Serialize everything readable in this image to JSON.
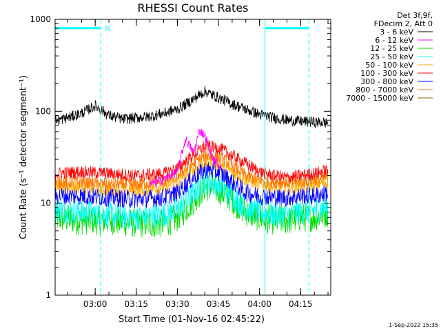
{
  "chart_data": {
    "type": "line",
    "title": "RHESSI Count Rates",
    "xlabel": "Start Time (01-Nov-16 02:45:22)",
    "ylabel": "Count Rate (s⁻¹ detector segment⁻¹)",
    "yscale": "log",
    "ylim": [
      1,
      1000
    ],
    "xlim": [
      "02:45:22",
      "04:26:00"
    ],
    "x_ticks": [
      "03:00",
      "03:15",
      "03:30",
      "03:45",
      "04:00",
      "04:15"
    ],
    "y_ticks": [
      "1",
      "10",
      "100",
      "1000"
    ],
    "legend_header": [
      "Det 3f,9f,",
      "FDecim 2, Att 0"
    ],
    "legend_position": "top-right, outside plot",
    "series": [
      {
        "name": "3 - 6 keV",
        "color": "#000000",
        "x": [
          "02:45",
          "02:50",
          "02:55",
          "03:00",
          "03:05",
          "03:10",
          "03:15",
          "03:20",
          "03:25",
          "03:30",
          "03:35",
          "03:40",
          "03:45",
          "03:50",
          "03:55",
          "04:00",
          "04:05",
          "04:10",
          "04:15",
          "04:20",
          "04:25"
        ],
        "y": [
          78,
          85,
          95,
          115,
          90,
          82,
          85,
          88,
          95,
          105,
          130,
          165,
          140,
          120,
          105,
          92,
          85,
          80,
          78,
          76,
          75
        ]
      },
      {
        "name": "6 - 12 keV",
        "color": "#ff00ff",
        "x": [
          "03:20",
          "03:25",
          "03:30",
          "03:33",
          "03:36",
          "03:38",
          "03:40",
          "03:43",
          "03:46"
        ],
        "y": [
          16,
          18,
          22,
          50,
          35,
          62,
          55,
          30,
          25
        ]
      },
      {
        "name": "12 - 25 keV",
        "color": "#00dd00",
        "x": [
          "02:45",
          "02:55",
          "03:05",
          "03:15",
          "03:25",
          "03:30",
          "03:35",
          "03:40",
          "03:45",
          "03:50",
          "03:55",
          "04:00",
          "04:05",
          "04:10",
          "04:15",
          "04:20",
          "04:25"
        ],
        "y": [
          7,
          6.5,
          6.5,
          6,
          6,
          7,
          10,
          15,
          14,
          11,
          8,
          7,
          6.5,
          6.5,
          7,
          7,
          8
        ]
      },
      {
        "name": "25 - 50 keV",
        "color": "#00ffff",
        "x": [
          "02:45",
          "02:55",
          "03:05",
          "03:15",
          "03:25",
          "03:30",
          "03:35",
          "03:40",
          "03:45",
          "03:50",
          "03:55",
          "04:00",
          "04:05",
          "04:10",
          "04:15",
          "04:20",
          "04:25"
        ],
        "y": [
          8.5,
          8,
          7.5,
          7,
          7.5,
          8.5,
          12,
          17,
          16,
          12,
          9,
          8,
          7.5,
          7.5,
          8,
          8.5,
          9
        ]
      },
      {
        "name": "50 - 100 keV",
        "color": "#ffaa00",
        "x": [
          "02:45",
          "02:55",
          "03:05",
          "03:15",
          "03:25",
          "03:30",
          "03:35",
          "03:40",
          "03:45",
          "03:50",
          "03:55",
          "04:00",
          "04:05",
          "04:10",
          "04:15",
          "04:20",
          "04:25"
        ],
        "y": [
          15,
          15,
          14,
          14,
          15,
          17,
          22,
          28,
          27,
          22,
          18,
          16,
          15,
          15,
          15,
          16,
          17
        ]
      },
      {
        "name": "100 - 300 keV",
        "color": "#ff0000",
        "x": [
          "02:45",
          "02:55",
          "03:05",
          "03:15",
          "03:25",
          "03:30",
          "03:35",
          "03:40",
          "03:45",
          "03:50",
          "03:55",
          "04:00",
          "04:05",
          "04:10",
          "04:15",
          "04:20",
          "04:25"
        ],
        "y": [
          21,
          22,
          21,
          20,
          21,
          24,
          32,
          42,
          40,
          33,
          27,
          22,
          20,
          19,
          20,
          21,
          23
        ]
      },
      {
        "name": "300 - 800 keV",
        "color": "#0000ff",
        "x": [
          "02:45",
          "02:55",
          "03:05",
          "03:15",
          "03:25",
          "03:30",
          "03:35",
          "03:40",
          "03:45",
          "03:50",
          "03:55",
          "04:00",
          "04:05",
          "04:10",
          "04:15",
          "04:20",
          "04:25"
        ],
        "y": [
          12,
          12,
          11.5,
          11,
          11.5,
          13,
          18,
          23,
          22,
          17,
          13,
          12,
          11.5,
          11.5,
          12,
          12,
          13
        ]
      },
      {
        "name": "800 - 7000 keV",
        "color": "#ff7700",
        "x": [
          "02:45",
          "02:55",
          "03:05",
          "03:15",
          "03:25",
          "03:30",
          "03:35",
          "03:40",
          "03:45",
          "03:50",
          "03:55",
          "04:00",
          "04:05",
          "04:10",
          "04:15",
          "04:20",
          "04:25"
        ],
        "y": [
          17,
          17,
          16,
          16,
          17,
          20,
          26,
          33,
          32,
          26,
          20,
          18,
          17,
          17,
          17,
          18,
          19
        ]
      },
      {
        "name": "7000 - 15000 keV",
        "color": "#8b6508",
        "x": [],
        "y": []
      }
    ],
    "annotations": [
      {
        "type": "vline",
        "at": "02:45:22",
        "color": "#00ffff",
        "style": "solid"
      },
      {
        "type": "vline",
        "at": "03:02:00",
        "color": "#00ffff",
        "style": "dashed"
      },
      {
        "type": "vline",
        "at": "04:02:00",
        "color": "#00ffff",
        "style": "solid"
      },
      {
        "type": "vline",
        "at": "04:18:00",
        "color": "#00ffff",
        "style": "dashed"
      },
      {
        "type": "bar",
        "from": "02:45:22",
        "to": "03:02:00",
        "level": 800,
        "color": "#00ffff",
        "label": "N"
      },
      {
        "type": "bar",
        "from": "04:02:00",
        "to": "04:18:00",
        "level": 800,
        "color": "#00ffff",
        "label": ""
      }
    ]
  },
  "footer": {
    "timestamp": "1-Sep-2022 15:35"
  }
}
